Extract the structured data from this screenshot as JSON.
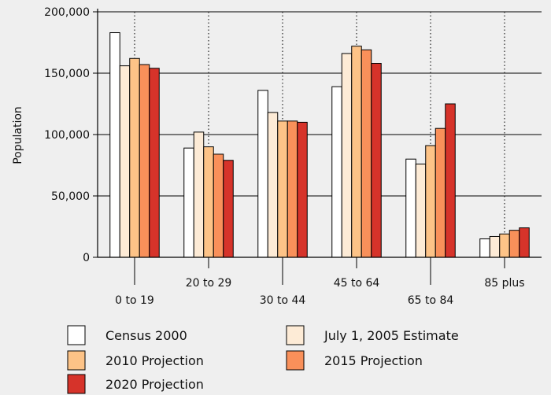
{
  "chart_data": {
    "type": "bar",
    "title": "",
    "xlabel": "",
    "ylabel": "Population",
    "ylim": [
      0,
      200000
    ],
    "yticks": [
      0,
      50000,
      100000,
      150000,
      200000
    ],
    "ytick_labels": [
      "0",
      "50,000",
      "100,000",
      "150,000",
      "200,000"
    ],
    "categories": [
      "0 to 19",
      "20 to 29",
      "30 to 44",
      "45 to 64",
      "65 to 84",
      "85 plus"
    ],
    "series": [
      {
        "name": "Census 2000",
        "color": "#ffffff",
        "values": [
          183000,
          89000,
          136000,
          139000,
          80000,
          15000
        ]
      },
      {
        "name": "July 1, 2005 Estimate",
        "color": "#fdebd6",
        "values": [
          156000,
          102000,
          118000,
          166000,
          76000,
          17000
        ]
      },
      {
        "name": "2010 Projection",
        "color": "#fdc387",
        "values": [
          162000,
          90000,
          111000,
          172000,
          91000,
          19000
        ]
      },
      {
        "name": "2015 Projection",
        "color": "#f9905a",
        "values": [
          157000,
          84000,
          111000,
          169000,
          105000,
          22000
        ]
      },
      {
        "name": "2020 Projection",
        "color": "#d6332a",
        "values": [
          154000,
          79000,
          110000,
          158000,
          125000,
          24000
        ]
      }
    ],
    "grid": "horizontal",
    "legend_position": "bottom"
  }
}
